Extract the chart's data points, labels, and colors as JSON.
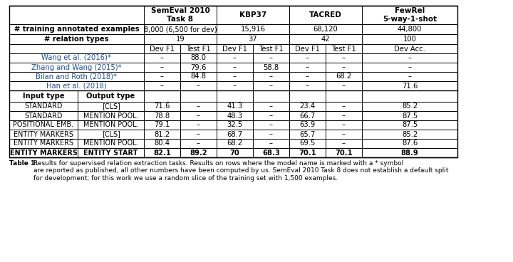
{
  "title": "Table 1: Results for supervised relation extraction tasks. Results on rows where the model name is marked with a * symbol\nare reported as published, all other numbers have been computed by us. SemEval 2010 Task 8 does not establish a default split\nfor development; for this work we use a random slice of the training set with 1,500 examples.",
  "header_row1": [
    "",
    "",
    "SemEval 2010\nTask 8",
    "",
    "KBP37",
    "",
    "TACRED",
    "",
    "FewRel\n5-way-1-shot"
  ],
  "header_row2": [
    "",
    "",
    "Dev F1",
    "Test F1",
    "Dev F1",
    "Test F1",
    "Dev F1",
    "Test F1",
    "Dev Acc."
  ],
  "info_rows": [
    [
      "# training annotated examples",
      "",
      "8,000 (6,500 for dev)",
      "",
      "15,916",
      "",
      "68,120",
      "",
      "44,800"
    ],
    [
      "# relation types",
      "",
      "19",
      "",
      "37",
      "",
      "42",
      "",
      "100"
    ]
  ],
  "baseline_rows": [
    [
      "Wang et al. (2016)*",
      "",
      "–",
      "88.0",
      "–",
      "–",
      "–",
      "–",
      "–"
    ],
    [
      "Zhang and Wang (2015)*",
      "",
      "–",
      "79.6",
      "–",
      "58.8",
      "–",
      "–",
      "–"
    ],
    [
      "Bilan and Roth (2018)*",
      "",
      "–",
      "84.8",
      "–",
      "–",
      "–",
      "68.2",
      "–"
    ],
    [
      "Han et al. (2018)",
      "",
      "–",
      "–",
      "–",
      "–",
      "–",
      "–",
      "71.6"
    ]
  ],
  "model_header": [
    "Input type",
    "Output type",
    "",
    "",
    "",
    "",
    "",
    "",
    ""
  ],
  "model_rows": [
    [
      "STANDARD",
      "[CLS]",
      "71.6",
      "–",
      "41.3",
      "–",
      "23.4",
      "–",
      "85.2"
    ],
    [
      "STANDARD",
      "MENTION POOL.",
      "78.8",
      "–",
      "48.3",
      "–",
      "66.7",
      "–",
      "87.5"
    ],
    [
      "POSITIONAL EMB.",
      "MENTION POOL.",
      "79.1",
      "–",
      "32.5",
      "–",
      "63.9",
      "–",
      "87.5"
    ],
    [
      "ENTITY MARKERS",
      "[CLS]",
      "81.2",
      "–",
      "68.7",
      "–",
      "65.7",
      "–",
      "85.2"
    ],
    [
      "ENTITY MARKERS",
      "MENTION POOL.",
      "80.4",
      "–",
      "68.2",
      "–",
      "69.5",
      "–",
      "87.6"
    ],
    [
      "ENTITY MARKERS",
      "ENTITY START",
      "82.1",
      "89.2",
      "70",
      "68.3",
      "70.1",
      "70.1",
      "88.9"
    ]
  ],
  "bold_last_row": true,
  "blue_color": "#1F4E9A",
  "bg_color": "#FFFFFF",
  "table_bg": "#F5F5F5"
}
